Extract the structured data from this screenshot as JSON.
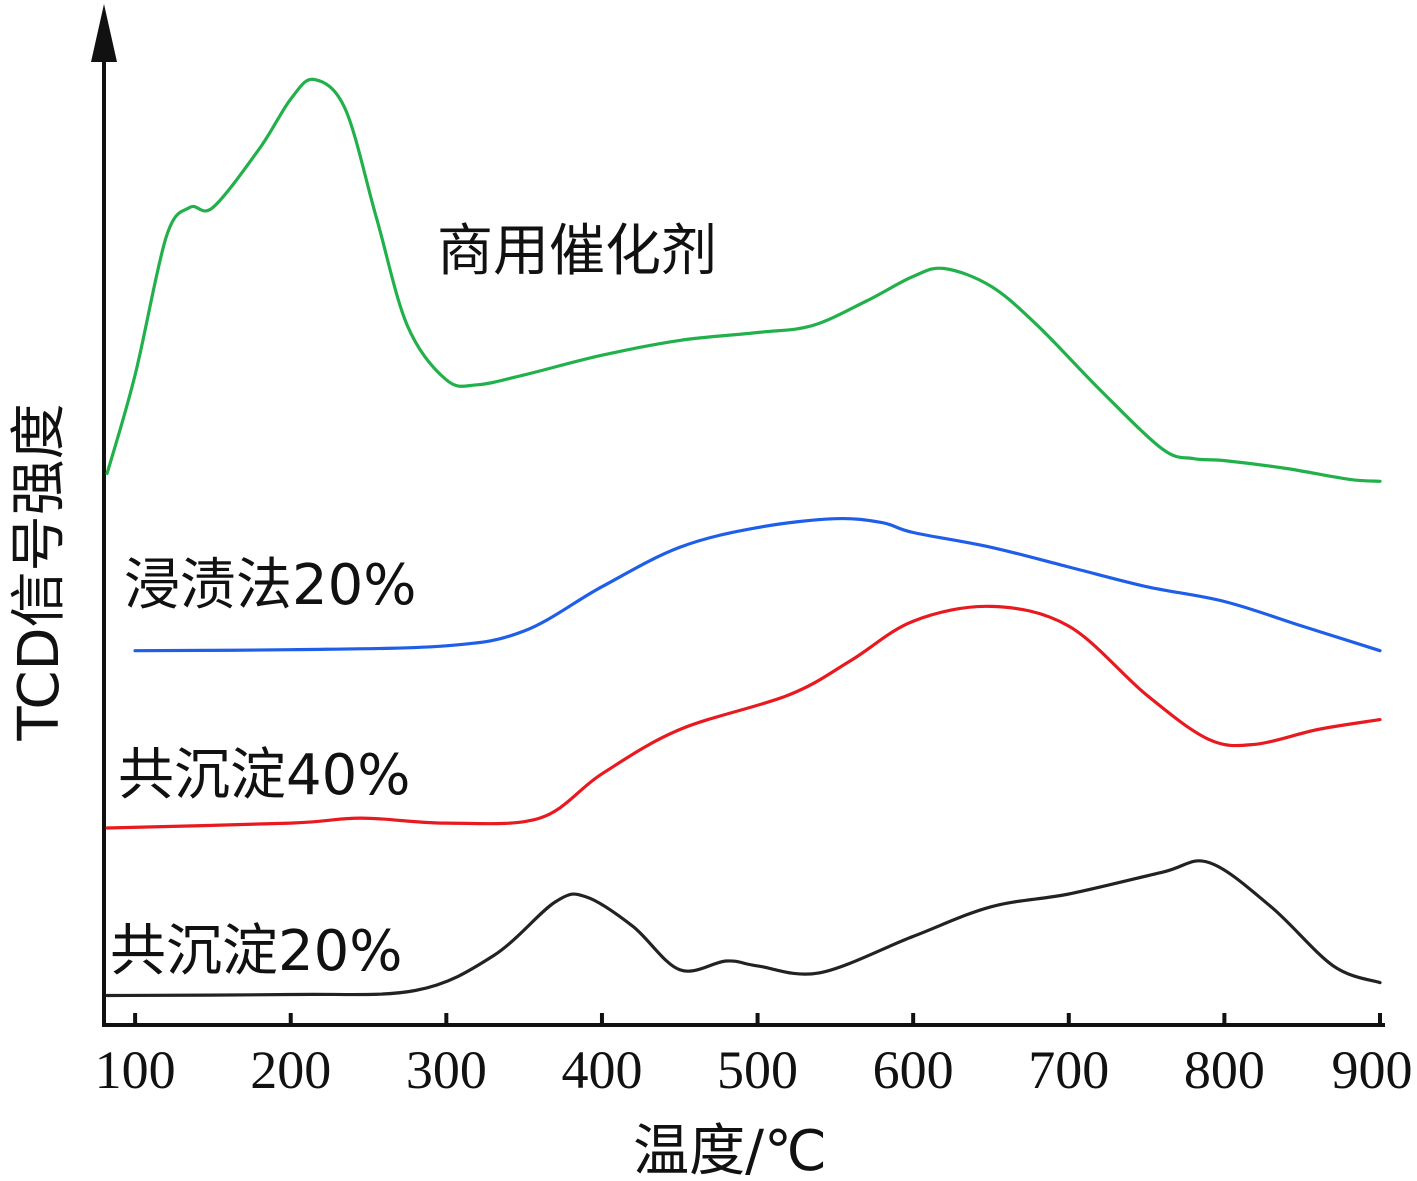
{
  "chart_data": {
    "type": "line",
    "xlabel": "温度/℃",
    "ylabel": "TCD信号强度",
    "xlim": [
      80,
      900
    ],
    "ylim": [
      0,
      100
    ],
    "x_ticks": [
      100,
      200,
      300,
      400,
      500,
      600,
      700,
      800,
      900
    ],
    "x_tick_labels": [
      "100",
      "200",
      "300",
      "400",
      "500",
      "600",
      "700",
      "800",
      "900"
    ],
    "grid": false,
    "series": [
      {
        "name": "商用催化剂",
        "color": "#22b04b",
        "x": [
          82,
          100,
          120,
          135,
          150,
          180,
          200,
          215,
          235,
          255,
          275,
          300,
          320,
          350,
          400,
          450,
          500,
          535,
          570,
          600,
          620,
          650,
          680,
          720,
          760,
          780,
          800,
          840,
          880,
          900
        ],
        "y": [
          56,
          66,
          80,
          83,
          83,
          89,
          94,
          96,
          93,
          82,
          71,
          65.5,
          65,
          66,
          68,
          69.5,
          70.3,
          71,
          73.5,
          76,
          76.8,
          75,
          71,
          64.5,
          58.5,
          57.5,
          57.3,
          56.5,
          55.4,
          55.2
        ]
      },
      {
        "name": "浸渍法20%",
        "color": "#1f5ee8",
        "x": [
          100,
          200,
          300,
          350,
          400,
          450,
          500,
          550,
          580,
          600,
          650,
          700,
          750,
          800,
          850,
          900
        ],
        "y": [
          38,
          38.1,
          38.5,
          40,
          44.5,
          48.5,
          50.5,
          51.4,
          51,
          50,
          48.5,
          46.5,
          44.5,
          43,
          40.5,
          38
        ]
      },
      {
        "name": "共沉淀40%",
        "color": "#e8191f",
        "x": [
          82,
          200,
          245,
          300,
          360,
          400,
          450,
          520,
          560,
          600,
          650,
          700,
          750,
          790,
          820,
          860,
          900
        ],
        "y": [
          20,
          20.5,
          21,
          20.5,
          21,
          25.5,
          30,
          33.5,
          37,
          41,
          42.5,
          40.5,
          33.5,
          29,
          28.5,
          30,
          31
        ]
      },
      {
        "name": "共沉淀20%",
        "color": "#222222",
        "x": [
          82,
          200,
          280,
          330,
          370,
          390,
          420,
          450,
          480,
          500,
          540,
          600,
          650,
          700,
          760,
          790,
          830,
          870,
          900
        ],
        "y": [
          3,
          3.1,
          3.5,
          7,
          12.5,
          13,
          10,
          5.6,
          6.5,
          6,
          5.3,
          9,
          12,
          13.3,
          15.5,
          16.5,
          12,
          6,
          4.3
        ]
      }
    ],
    "labels": [
      "商用催化剂",
      "浸渍法20%",
      "共沉淀40%",
      "共沉淀20%"
    ]
  }
}
